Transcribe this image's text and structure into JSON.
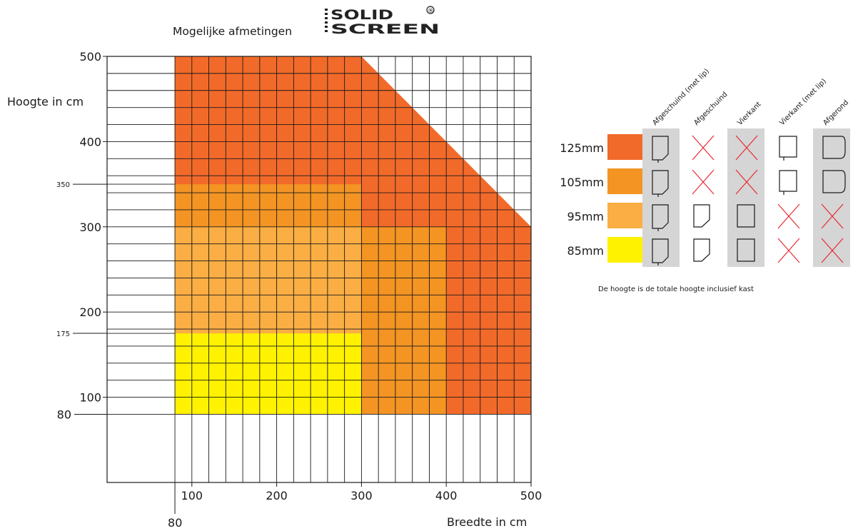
{
  "header": {
    "title": "Mogelijke afmetingen",
    "logo_line1": "SOLID",
    "logo_line2": "SCREEN",
    "logo_mark": "®"
  },
  "legend": {
    "columns": [
      "Afgeschuind (met lip)",
      "Afgeschuind",
      "Vierkant",
      "Vierkant (met lip)",
      "Afgerond"
    ],
    "rows": [
      {
        "label": "125mm",
        "color": "#f26a2a",
        "cells": [
          "afgeschuind-lip-icon",
          "not-available-icon",
          "not-available-icon",
          "vierkant-lip-icon",
          "afgerond-icon"
        ]
      },
      {
        "label": "105mm",
        "color": "#f39423",
        "cells": [
          "afgeschuind-lip-icon",
          "not-available-icon",
          "not-available-icon",
          "vierkant-lip-icon",
          "afgerond-icon"
        ]
      },
      {
        "label": "95mm",
        "color": "#fbae43",
        "cells": [
          "afgeschuind-lip-icon",
          "afgeschuind-icon",
          "vierkant-icon",
          "not-available-icon",
          "not-available-icon"
        ]
      },
      {
        "label": "85mm",
        "color": "#fff200",
        "cells": [
          "afgeschuind-lip-icon",
          "afgeschuind-icon",
          "vierkant-icon",
          "not-available-icon",
          "not-available-icon"
        ]
      }
    ],
    "note": "De hoogte is de totale hoogte inclusief kast"
  },
  "chart_data": {
    "type": "area",
    "title": "Mogelijke afmetingen",
    "xlabel": "Breedte in cm",
    "ylabel": "Hoogte in cm",
    "xlim": [
      0,
      500
    ],
    "ylim": [
      0,
      500
    ],
    "x_ticks": [
      100,
      200,
      300,
      400,
      500
    ],
    "y_ticks": [
      100,
      200,
      300,
      400,
      500
    ],
    "extra_x_ticks": [
      80
    ],
    "extra_y_ticks": [
      80,
      175,
      350
    ],
    "grid_step": 20,
    "grid": true,
    "regions": [
      {
        "name": "125mm",
        "color": "#f26a2a",
        "polygon": [
          [
            80,
            80
          ],
          [
            500,
            80
          ],
          [
            500,
            300
          ],
          [
            300,
            500
          ],
          [
            80,
            500
          ]
        ]
      },
      {
        "name": "105mm",
        "color": "#f39423",
        "polygon": [
          [
            80,
            80
          ],
          [
            400,
            80
          ],
          [
            400,
            300
          ],
          [
            300,
            300
          ],
          [
            300,
            350
          ],
          [
            80,
            350
          ]
        ]
      },
      {
        "name": "95mm",
        "color": "#fbae43",
        "polygon": [
          [
            80,
            80
          ],
          [
            300,
            80
          ],
          [
            300,
            300
          ],
          [
            80,
            300
          ]
        ]
      },
      {
        "name": "85mm",
        "color": "#fff200",
        "polygon": [
          [
            80,
            80
          ],
          [
            300,
            80
          ],
          [
            300,
            175
          ],
          [
            80,
            175
          ]
        ]
      }
    ]
  }
}
